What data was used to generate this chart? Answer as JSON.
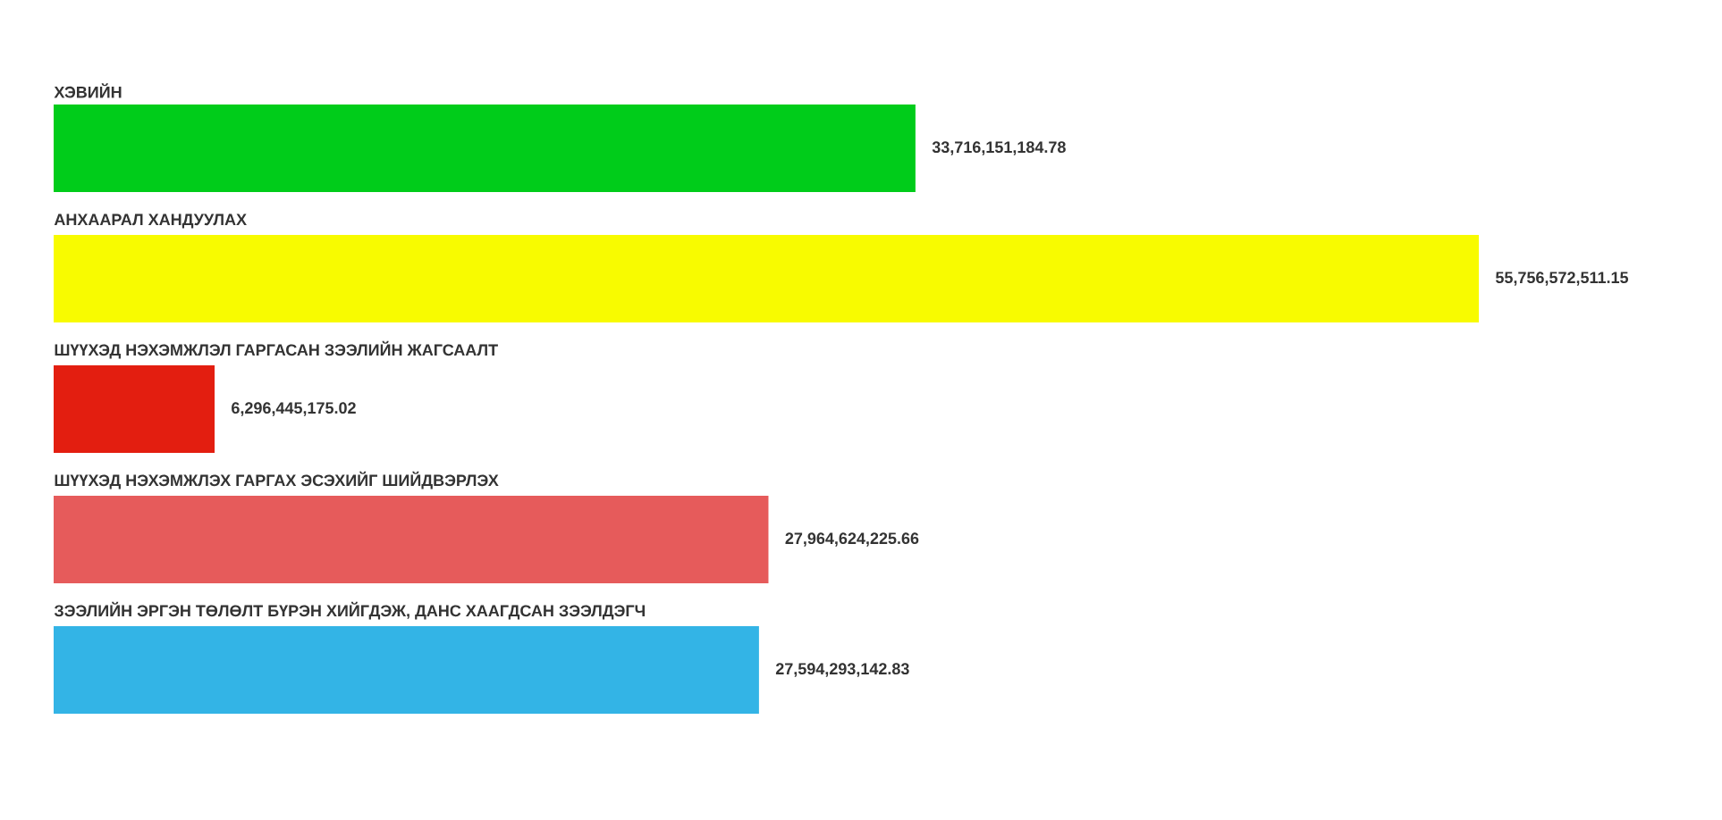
{
  "chart_data": {
    "type": "bar",
    "orientation": "horizontal",
    "categories": [
      "ХЭВИЙН",
      "АНХААРАЛ ХАНДУУЛАХ",
      "ШҮҮХЭД НЭХЭМЖЛЭЛ ГАРГАСАН ЗЭЭЛИЙН ЖАГСААЛТ",
      "ШҮҮХЭД НЭХЭМЖЛЭХ ГАРГАХ ЭСЭХИЙГ ШИЙДВЭРЛЭХ",
      "ЗЭЭЛИЙН ЭРГЭН ТӨЛӨЛТ БҮРЭН ХИЙГДЭЖ, ДАНС ХААГДСАН ЗЭЭЛДЭГЧ"
    ],
    "values": [
      33716151184.78,
      55756572511.15,
      6296445175.02,
      27964624225.66,
      27594293142.83
    ],
    "value_labels": [
      "33,716,151,184.78",
      "55,756,572,511.15",
      "6,296,445,175.02",
      "27,964,624,225.66",
      "27,594,293,142.83"
    ],
    "colors": [
      "#00cc1a",
      "#f8fb00",
      "#e31e10",
      "#e65b5b",
      "#33b4e6"
    ]
  }
}
